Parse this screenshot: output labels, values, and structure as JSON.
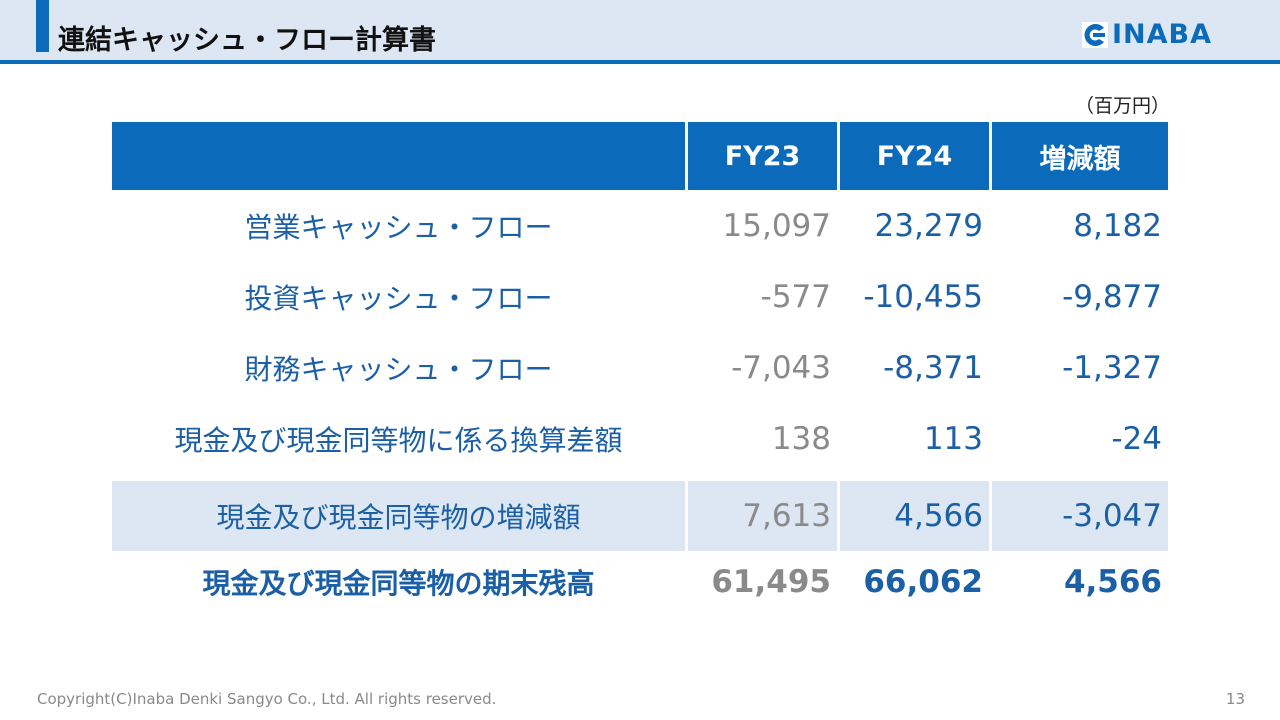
{
  "header": {
    "title": "連結キャッシュ・フロー計算書",
    "logo_text": "INABA",
    "accent_color": "#0b6bba",
    "band_color": "#dde7f3"
  },
  "table": {
    "unit": "（百万円）",
    "columns": [
      "FY23",
      "FY24",
      "増減額"
    ],
    "rows": [
      {
        "label": "営業キャッシュ・フロー",
        "fy23": "15,097",
        "fy24": "23,279",
        "change": "8,182"
      },
      {
        "label": "投資キャッシュ・フロー",
        "fy23": "-577",
        "fy24": "-10,455",
        "change": "-9,877"
      },
      {
        "label": "財務キャッシュ・フロー",
        "fy23": "-7,043",
        "fy24": "-8,371",
        "change": "-1,327"
      },
      {
        "label": "現金及び現金同等物に係る換算差額",
        "fy23": "138",
        "fy24": "113",
        "change": "-24"
      },
      {
        "label": "現金及び現金同等物の増減額",
        "fy23": "7,613",
        "fy24": "4,566",
        "change": "-3,047"
      },
      {
        "label": "現金及び現金同等物の期末残高",
        "fy23": "61,495",
        "fy24": "66,062",
        "change": "4,566"
      }
    ]
  },
  "footer": {
    "copyright": "Copyright(C)Inaba Denki Sangyo Co., Ltd. All rights reserved.",
    "page_number": "13"
  }
}
